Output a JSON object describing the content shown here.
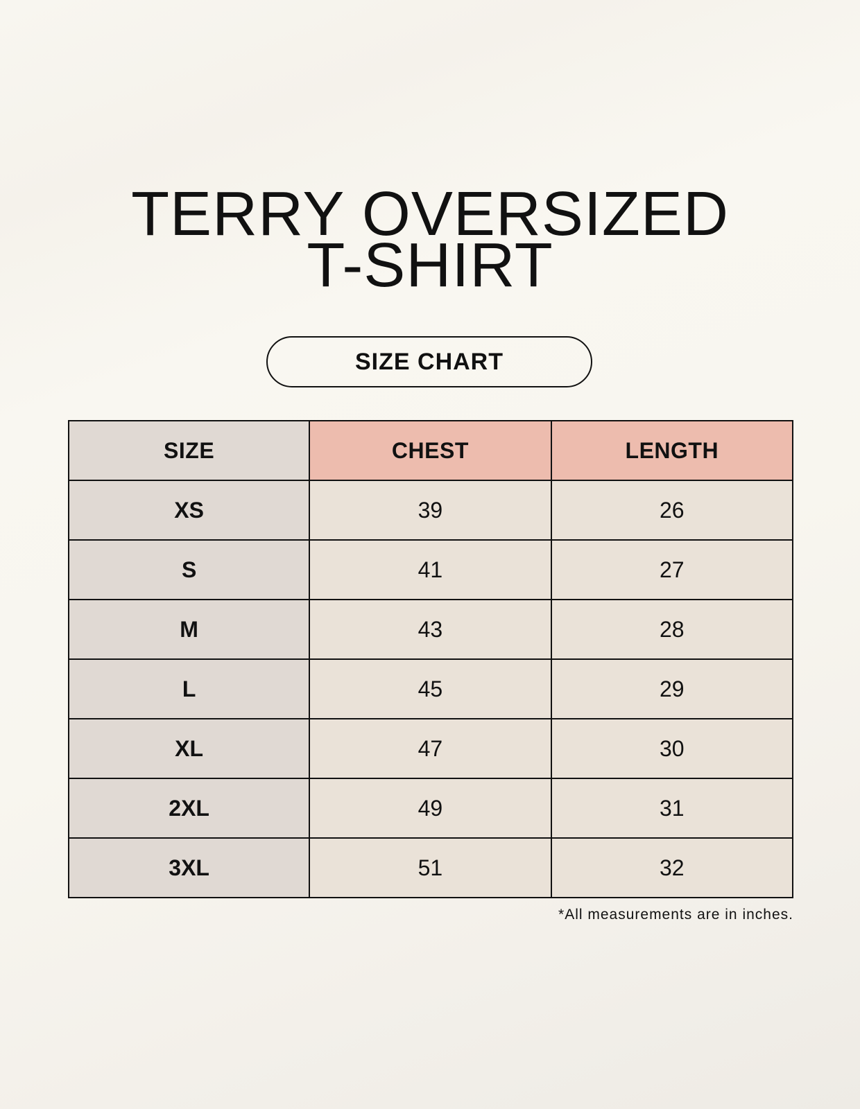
{
  "title": {
    "line1": "TERRY OVERSIZED",
    "line2": "T-SHIRT"
  },
  "badge": "SIZE CHART",
  "table": {
    "headers": [
      "SIZE",
      "CHEST",
      "LENGTH"
    ],
    "rows": [
      [
        "XS",
        "39",
        "26"
      ],
      [
        "S",
        "41",
        "27"
      ],
      [
        "M",
        "43",
        "28"
      ],
      [
        "L",
        "45",
        "29"
      ],
      [
        "XL",
        "47",
        "30"
      ],
      [
        "2XL",
        "49",
        "31"
      ],
      [
        "3XL",
        "51",
        "32"
      ]
    ]
  },
  "footnote": "*All measurements are in inches.",
  "colors": {
    "size_column": "#e0d9d3",
    "header_accent": "#edbcae",
    "cell": "#eae2d8"
  }
}
